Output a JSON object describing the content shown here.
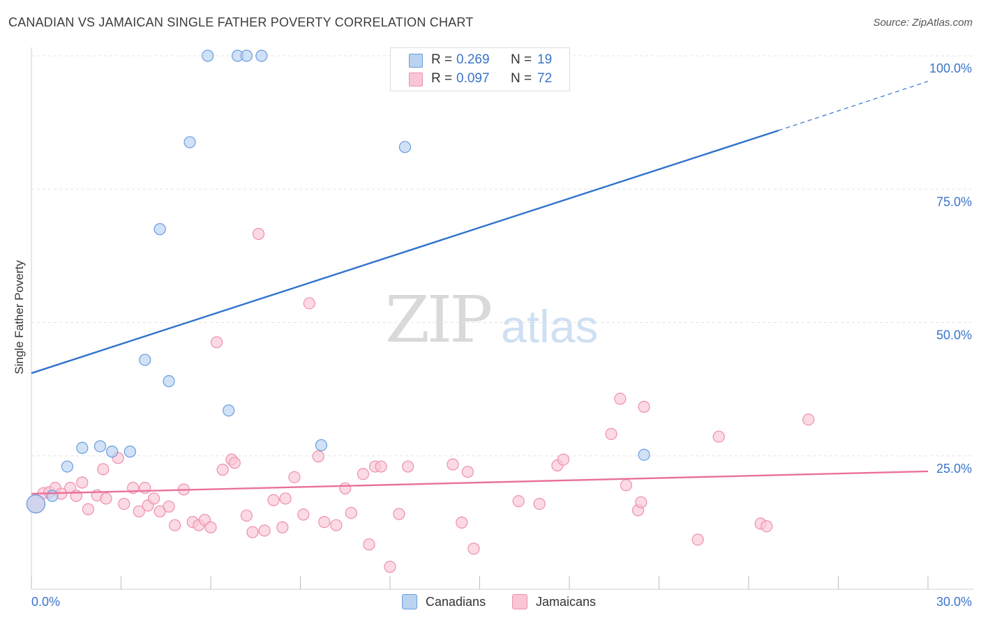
{
  "header": {
    "title": "CANADIAN VS JAMAICAN SINGLE FATHER POVERTY CORRELATION CHART",
    "source": "Source: ZipAtlas.com"
  },
  "watermark": {
    "part1": "ZIP",
    "part2": "atlas"
  },
  "legend_top": {
    "rows": [
      {
        "r_label": "R =",
        "r_value": "0.269",
        "n_label": "N =",
        "n_value": "19"
      },
      {
        "r_label": "R =",
        "r_value": "0.097",
        "n_label": "N =",
        "n_value": "72"
      }
    ]
  },
  "legend_bottom": {
    "items": [
      "Canadians",
      "Jamaicans"
    ]
  },
  "colors": {
    "canadian_fill": "#b9d3f1",
    "canadian_stroke": "#6a9be0",
    "canadian_line": "#2f72cc",
    "jamaican_fill": "#f9c6d5",
    "jamaican_stroke": "#ee8fab",
    "jamaican_line": "#e8719a",
    "axis_label": "#3a74c9",
    "grid": "#e3e3e3"
  },
  "chart_data": {
    "type": "scatter",
    "title": "CANADIAN VS JAMAICAN SINGLE FATHER POVERTY CORRELATION CHART",
    "xlabel": "",
    "ylabel": "Single Father Poverty",
    "xlim": [
      0,
      30
    ],
    "ylim": [
      0,
      100
    ],
    "x_tick_labels": [
      "0.0%",
      "30.0%"
    ],
    "y_ticks": [
      25,
      50,
      75,
      100
    ],
    "y_tick_labels": [
      "25.0%",
      "50.0%",
      "75.0%",
      "100.0%"
    ],
    "grid": true,
    "series": [
      {
        "name": "Canadians",
        "r": 0.269,
        "n": 19,
        "points": [
          [
            0.15,
            16.0
          ],
          [
            0.7,
            17.5
          ],
          [
            1.2,
            23.0
          ],
          [
            1.7,
            26.5
          ],
          [
            2.3,
            26.8
          ],
          [
            2.7,
            25.8
          ],
          [
            3.3,
            25.8
          ],
          [
            3.8,
            43.0
          ],
          [
            4.3,
            67.5
          ],
          [
            4.6,
            39.0
          ],
          [
            5.3,
            83.8
          ],
          [
            5.9,
            100.0
          ],
          [
            6.6,
            33.5
          ],
          [
            6.9,
            100.0
          ],
          [
            7.2,
            100.0
          ],
          [
            7.7,
            100.0
          ],
          [
            9.7,
            27.0
          ],
          [
            12.5,
            82.9
          ],
          [
            20.5,
            25.2
          ]
        ],
        "trend": {
          "x0": 0,
          "y0": 40.5,
          "x1": 25.0,
          "y1": 86.0,
          "dash_to_x": 30,
          "dash_to_y": 95.2
        }
      },
      {
        "name": "Jamaicans",
        "r": 0.097,
        "n": 72,
        "points": [
          [
            0.15,
            16.0
          ],
          [
            0.4,
            18.0
          ],
          [
            0.6,
            18.2
          ],
          [
            0.8,
            19.0
          ],
          [
            1.0,
            17.9
          ],
          [
            1.3,
            19.0
          ],
          [
            1.5,
            17.5
          ],
          [
            1.7,
            20.0
          ],
          [
            1.9,
            15.0
          ],
          [
            2.2,
            17.6
          ],
          [
            2.4,
            22.5
          ],
          [
            2.5,
            17.0
          ],
          [
            2.9,
            24.6
          ],
          [
            3.1,
            16.0
          ],
          [
            3.4,
            19.0
          ],
          [
            3.6,
            14.6
          ],
          [
            3.8,
            19.0
          ],
          [
            3.9,
            15.7
          ],
          [
            4.1,
            17.0
          ],
          [
            4.3,
            14.6
          ],
          [
            4.6,
            15.5
          ],
          [
            4.8,
            12.0
          ],
          [
            5.1,
            18.7
          ],
          [
            5.4,
            12.6
          ],
          [
            5.6,
            12.0
          ],
          [
            5.8,
            13.0
          ],
          [
            6.0,
            11.6
          ],
          [
            6.2,
            46.3
          ],
          [
            6.4,
            22.4
          ],
          [
            6.7,
            24.3
          ],
          [
            6.8,
            23.7
          ],
          [
            7.2,
            13.8
          ],
          [
            7.4,
            10.7
          ],
          [
            7.6,
            66.6
          ],
          [
            7.8,
            11.0
          ],
          [
            8.1,
            16.7
          ],
          [
            8.4,
            11.6
          ],
          [
            8.5,
            17.0
          ],
          [
            8.8,
            21.0
          ],
          [
            9.1,
            14.0
          ],
          [
            9.3,
            53.6
          ],
          [
            9.6,
            24.9
          ],
          [
            9.8,
            12.6
          ],
          [
            10.2,
            12.0
          ],
          [
            10.5,
            18.9
          ],
          [
            10.7,
            14.3
          ],
          [
            11.1,
            21.6
          ],
          [
            11.3,
            8.4
          ],
          [
            11.5,
            23.0
          ],
          [
            11.7,
            23.0
          ],
          [
            12.0,
            4.2
          ],
          [
            12.3,
            14.1
          ],
          [
            12.6,
            23.0
          ],
          [
            14.1,
            23.4
          ],
          [
            14.4,
            12.5
          ],
          [
            14.6,
            22.0
          ],
          [
            14.8,
            7.6
          ],
          [
            16.3,
            16.5
          ],
          [
            17.0,
            16.0
          ],
          [
            17.6,
            23.2
          ],
          [
            17.8,
            24.3
          ],
          [
            19.4,
            29.1
          ],
          [
            19.7,
            35.7
          ],
          [
            19.9,
            19.5
          ],
          [
            20.3,
            14.8
          ],
          [
            20.4,
            16.3
          ],
          [
            20.5,
            34.2
          ],
          [
            22.3,
            9.3
          ],
          [
            23.0,
            28.6
          ],
          [
            24.4,
            12.3
          ],
          [
            24.6,
            11.8
          ],
          [
            26.0,
            31.8
          ]
        ],
        "trend": {
          "x0": 0,
          "y0": 17.9,
          "x1": 30,
          "y1": 22.1
        }
      }
    ]
  }
}
